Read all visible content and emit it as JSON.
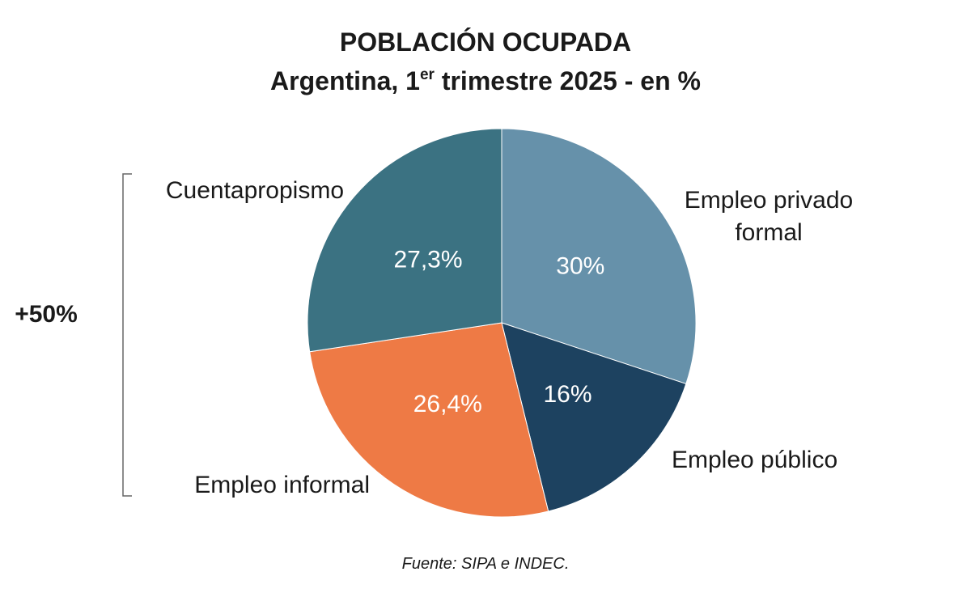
{
  "header": {
    "title": "POBLACIÓN OCUPADA",
    "subtitle_pre": "Argentina, 1",
    "subtitle_sup": "er",
    "subtitle_post": " trimestre 2025 - en %"
  },
  "bracket": {
    "label": "+50%"
  },
  "source": "Fuente: SIPA e INDEC.",
  "chart_data": {
    "type": "pie",
    "title": "POBLACIÓN OCUPADA",
    "subtitle": "Argentina, 1er trimestre 2025 - en %",
    "slices": [
      {
        "label": [
          "Empleo privado",
          "formal"
        ],
        "value": 30,
        "value_label": "30%",
        "color": "#6691aa"
      },
      {
        "label": [
          "Empleo público"
        ],
        "value": 16,
        "value_label": "16%",
        "color": "#1d4260"
      },
      {
        "label": [
          "Empleo informal"
        ],
        "value": 26.4,
        "value_label": "26,4%",
        "color": "#ee7a45"
      },
      {
        "label": [
          "Cuentapropismo"
        ],
        "value": 27.3,
        "value_label": "27,3%",
        "color": "#3b7282"
      }
    ],
    "start": "12 o'clock",
    "direction": "clockwise",
    "annotation": "+50%"
  }
}
